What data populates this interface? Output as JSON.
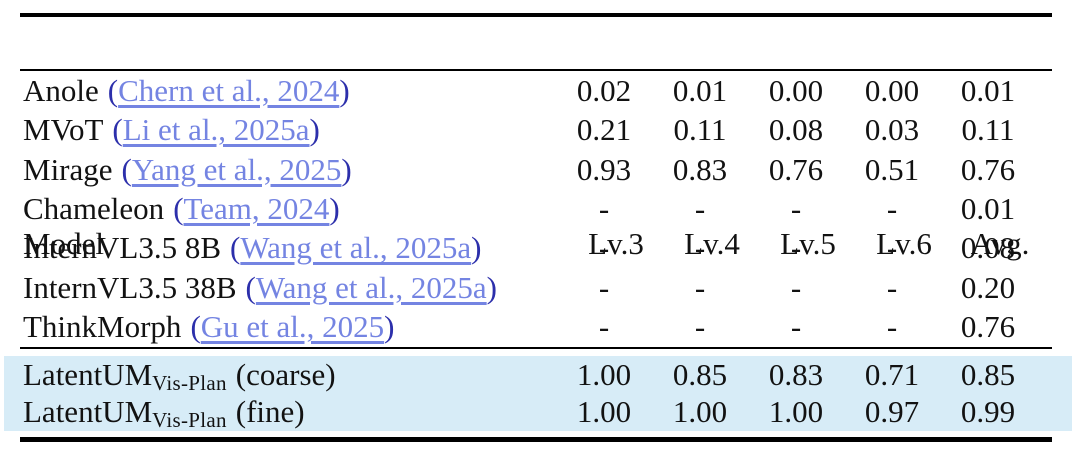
{
  "table": {
    "columns": [
      "Model",
      "Lv.3",
      "Lv.4",
      "Lv.5",
      "Lv.6",
      "Avg."
    ],
    "punct": {
      "open": "(",
      "close": ")"
    },
    "rows": [
      {
        "model": "Anole",
        "citation": "Chern et al., 2024",
        "values": [
          "0.02",
          "0.01",
          "0.00",
          "0.00",
          "0.01"
        ]
      },
      {
        "model": "MVoT",
        "citation": "Li et al., 2025a",
        "values": [
          "0.21",
          "0.11",
          "0.08",
          "0.03",
          "0.11"
        ]
      },
      {
        "model": "Mirage",
        "citation": "Yang et al., 2025",
        "values": [
          "0.93",
          "0.83",
          "0.76",
          "0.51",
          "0.76"
        ]
      },
      {
        "model": "Chameleon",
        "citation": "Team, 2024",
        "values": [
          "-",
          "-",
          "-",
          "-",
          "0.01"
        ]
      },
      {
        "model": "InternVL3.5 8B",
        "citation": "Wang et al., 2025a",
        "values": [
          "-",
          "-",
          "-",
          "-",
          "0.08"
        ]
      },
      {
        "model": "InternVL3.5 38B",
        "citation": "Wang et al., 2025a",
        "values": [
          "-",
          "-",
          "-",
          "-",
          "0.20"
        ]
      },
      {
        "model": "ThinkMorph",
        "citation": "Gu et al., 2025",
        "values": [
          "-",
          "-",
          "-",
          "-",
          "0.76"
        ]
      }
    ],
    "highlighted_rows": [
      {
        "model_base": "LatentUM",
        "model_sub": "Vis-Plan",
        "model_variant": "(coarse)",
        "values": [
          "1.00",
          "0.85",
          "0.83",
          "0.71",
          "0.85"
        ]
      },
      {
        "model_base": "LatentUM",
        "model_sub": "Vis-Plan",
        "model_variant": "(fine)",
        "values": [
          "1.00",
          "1.00",
          "1.00",
          "0.97",
          "0.99"
        ]
      }
    ],
    "colors": {
      "highlight_row_background": "#d7ecf7",
      "citation_link_text": "#7484e2",
      "citation_parenthesis": "#2c2fab",
      "body_text": "#121212",
      "rules": "#000000"
    }
  }
}
